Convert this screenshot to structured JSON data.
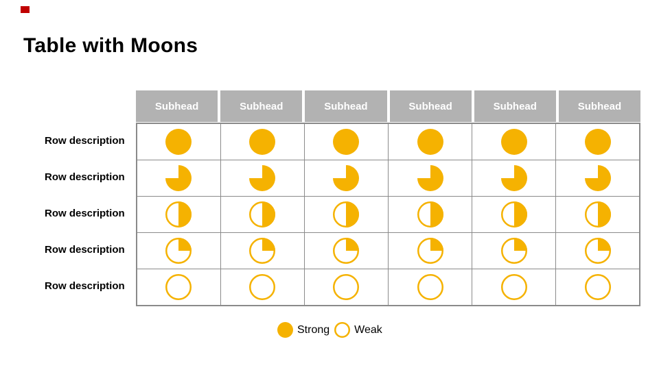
{
  "colors": {
    "accent": "#C00000",
    "moon": "#F5B201",
    "header_bg": "#B2B2B2",
    "border": "#8A8A8A",
    "header_text": "#FFFFFF"
  },
  "slide": {
    "title": "Table with Moons"
  },
  "table": {
    "column_headers": [
      "Subhead",
      "Subhead",
      "Subhead",
      "Subhead",
      "Subhead",
      "Subhead"
    ],
    "rows": [
      {
        "label": "Row description",
        "fill_percent": 100
      },
      {
        "label": "Row description",
        "fill_percent": 75
      },
      {
        "label": "Row description",
        "fill_percent": 50
      },
      {
        "label": "Row description",
        "fill_percent": 25
      },
      {
        "label": "Row description",
        "fill_percent": 0
      }
    ]
  },
  "legend": {
    "strong_label": "Strong",
    "weak_label": "Weak"
  },
  "chart_data": {
    "type": "table",
    "title": "Table with Moons",
    "columns": [
      "Subhead",
      "Subhead",
      "Subhead",
      "Subhead",
      "Subhead",
      "Subhead"
    ],
    "row_labels": [
      "Row description",
      "Row description",
      "Row description",
      "Row description",
      "Row description"
    ],
    "values_fill_percent": [
      [
        100,
        100,
        100,
        100,
        100,
        100
      ],
      [
        75,
        75,
        75,
        75,
        75,
        75
      ],
      [
        50,
        50,
        50,
        50,
        50,
        50
      ],
      [
        25,
        25,
        25,
        25,
        25,
        25
      ],
      [
        0,
        0,
        0,
        0,
        0,
        0
      ]
    ],
    "legend": [
      {
        "label": "Strong",
        "fill_percent": 100
      },
      {
        "label": "Weak",
        "fill_percent": 0
      }
    ],
    "layout": {
      "grid": "on",
      "legend_position": "bottom-center"
    }
  }
}
